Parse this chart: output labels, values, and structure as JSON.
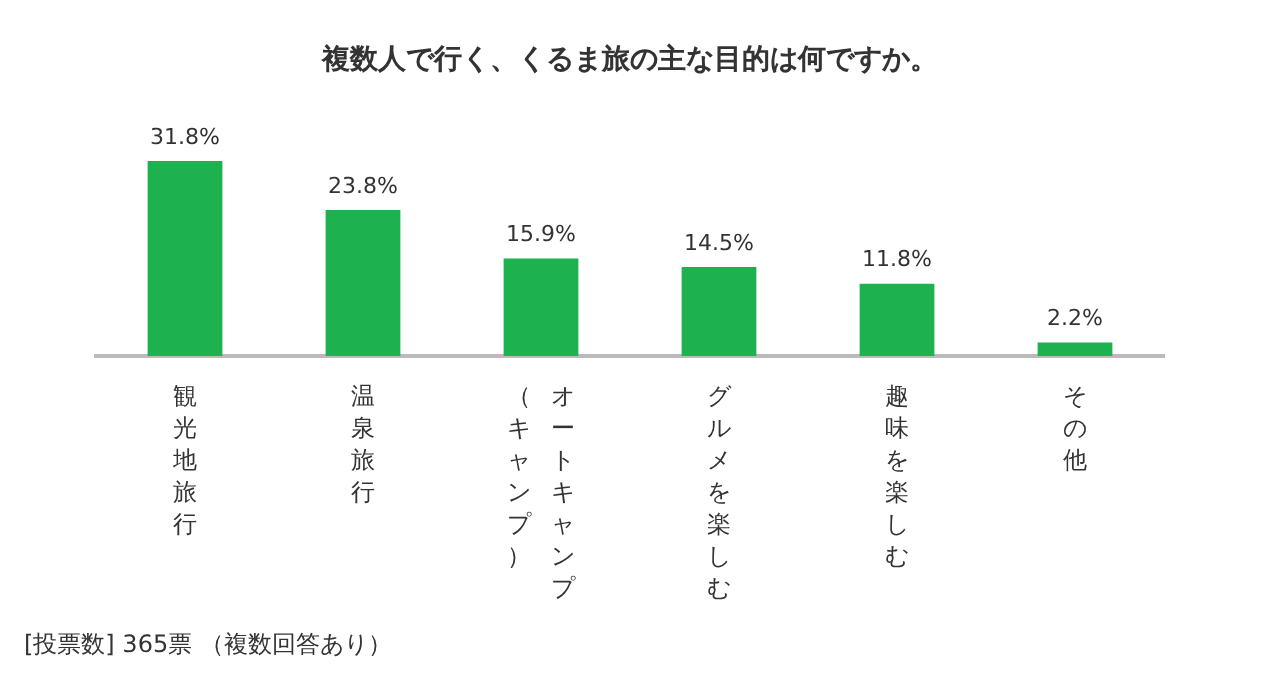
{
  "chart_data": {
    "type": "bar",
    "title": "複数人で行く、くるま旅の主な目的は何ですか。",
    "categories": [
      "観光地旅行",
      "温泉旅行",
      "オートキャンプ（キャンプ）",
      "グルメを楽しむ",
      "趣味を楽しむ",
      "その他"
    ],
    "values": [
      31.8,
      23.8,
      15.9,
      14.5,
      11.8,
      2.2
    ],
    "value_labels": [
      "31.8%",
      "23.8%",
      "15.9%",
      "14.5%",
      "11.8%",
      "2.2%"
    ],
    "color": "#1db150",
    "annotations": [
      "[投票数] 365票 （複数回答あり）"
    ]
  }
}
